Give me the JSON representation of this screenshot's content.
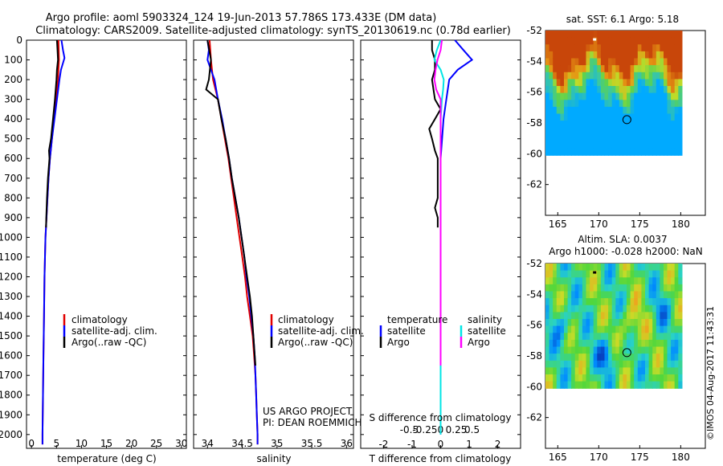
{
  "header": {
    "title_line1": "Argo profile: aoml 5903324_124 19-Jun-2013 57.786S 173.433E (DM data)",
    "title_line2": "Climatology: CARS2009. Satellite-adjusted climatology: synTS_20130619.nc (0.78d earlier)"
  },
  "colors": {
    "climatology": "#e00000",
    "satellite": "#0000ff",
    "argo": "#000000",
    "salinity_satellite": "#00e5e5",
    "salinity_argo": "#ff00ff"
  },
  "chart_data": [
    {
      "type": "line",
      "name": "temperature-profile",
      "xlabel": "temperature (deg C)",
      "ylabel": "",
      "xlim": [
        -1,
        31
      ],
      "ylim": [
        2070,
        0
      ],
      "xticks": [
        "0",
        "5",
        "10",
        "15",
        "20",
        "25",
        "30"
      ],
      "yticks": [
        "0",
        "100",
        "200",
        "300",
        "400",
        "500",
        "600",
        "700",
        "800",
        "900",
        "1000",
        "1100",
        "1200",
        "1300",
        "1400",
        "1500",
        "1600",
        "1700",
        "1800",
        "1900",
        "2000"
      ],
      "legend": [
        "climatology",
        "satellite-adj. clim.",
        "Argo(..raw -QC)"
      ],
      "series": [
        {
          "name": "climatology",
          "color_key": "climatology",
          "depth": [
            0,
            100,
            200,
            300,
            400,
            500,
            600,
            700,
            800,
            900,
            1000,
            1200,
            1400,
            1600,
            1800,
            2000,
            2050
          ],
          "values": [
            5.4,
            5.5,
            5.3,
            4.9,
            4.5,
            4.1,
            3.7,
            3.4,
            3.2,
            3.0,
            2.8,
            2.6,
            2.5,
            2.4,
            2.3,
            2.2,
            2.2
          ]
        },
        {
          "name": "satellite-adj. clim.",
          "color_key": "satellite",
          "depth": [
            0,
            50,
            90,
            150,
            200,
            300,
            400,
            500,
            600,
            700,
            800,
            900,
            1000,
            1200,
            1400,
            1600,
            1800,
            2000,
            2050
          ],
          "values": [
            6.0,
            6.3,
            6.6,
            5.9,
            5.6,
            5.1,
            4.6,
            4.1,
            3.7,
            3.4,
            3.2,
            3.0,
            2.8,
            2.6,
            2.5,
            2.4,
            2.3,
            2.2,
            2.2
          ]
        },
        {
          "name": "Argo(..raw -QC)",
          "color_key": "argo",
          "depth": [
            0,
            50,
            100,
            150,
            200,
            300,
            400,
            500,
            560,
            600,
            700,
            800,
            900,
            950
          ],
          "values": [
            5.1,
            5.2,
            5.3,
            5.1,
            5.0,
            4.7,
            4.3,
            3.9,
            3.5,
            3.6,
            3.3,
            3.1,
            2.95,
            2.9
          ]
        }
      ]
    },
    {
      "type": "line",
      "name": "salinity-profile",
      "xlabel": "salinity",
      "ylabel": "",
      "xlim": [
        33.8,
        36.1
      ],
      "ylim": [
        2070,
        0
      ],
      "xticks": [
        "34",
        "34.5",
        "35",
        "35.5",
        "36"
      ],
      "legend": [
        "climatology",
        "satellite-adj. clim.",
        "Argo(..raw -QC)"
      ],
      "annotation_line1": "US ARGO PROJECT",
      "annotation_line2": "PI: DEAN ROEMMICH",
      "series": [
        {
          "name": "climatology",
          "color_key": "climatology",
          "depth": [
            0,
            50,
            100,
            200,
            300,
            400,
            500,
            600,
            700,
            800,
            900,
            1000,
            1100,
            1200,
            1300,
            1400,
            1500,
            1600,
            1700,
            1800,
            1900,
            2000,
            2050
          ],
          "values": [
            34.03,
            34.04,
            34.05,
            34.08,
            34.15,
            34.2,
            34.25,
            34.3,
            34.34,
            34.38,
            34.42,
            34.46,
            34.5,
            34.54,
            34.57,
            34.61,
            34.65,
            34.67,
            34.69,
            34.7,
            34.71,
            34.72,
            34.72
          ]
        },
        {
          "name": "satellite-adj. clim.",
          "color_key": "satellite",
          "depth": [
            0,
            50,
            100,
            150,
            200,
            300,
            400,
            500,
            600,
            700,
            800,
            900,
            1000,
            1100,
            1200,
            1300,
            1400,
            1500,
            1600,
            1700,
            1800,
            1900,
            2000,
            2050
          ],
          "values": [
            34.0,
            34.02,
            34.0,
            34.05,
            34.1,
            34.15,
            34.21,
            34.26,
            34.31,
            34.35,
            34.4,
            34.45,
            34.49,
            34.53,
            34.56,
            34.6,
            34.63,
            34.66,
            34.68,
            34.69,
            34.7,
            34.71,
            34.72,
            34.72
          ]
        },
        {
          "name": "Argo(..raw -QC)",
          "color_key": "argo",
          "depth": [
            0,
            100,
            200,
            250,
            300,
            400,
            500,
            600,
            700,
            800,
            900,
            1000,
            1100,
            1200,
            1300,
            1400,
            1500,
            1600,
            1650
          ],
          "values": [
            34.0,
            34.05,
            34.02,
            33.98,
            34.15,
            34.2,
            34.26,
            34.31,
            34.35,
            34.4,
            34.45,
            34.49,
            34.53,
            34.57,
            34.61,
            34.64,
            34.66,
            34.68,
            34.69
          ]
        }
      ]
    },
    {
      "type": "line",
      "name": "difference-profile",
      "xlabel": "T difference from climatology",
      "xlabel2": "S difference from climatology",
      "xlim": [
        -2.8,
        2.8
      ],
      "ylim": [
        2070,
        0
      ],
      "xticks_T": [
        "-2",
        "-1",
        "0",
        "1",
        "2"
      ],
      "xticks_S": [
        "-0.5",
        "-0.25",
        "0",
        "0.25",
        "0.5"
      ],
      "legend_temperature_title": "temperature",
      "legend_salinity_title": "salinity",
      "legend_items": [
        "satellite",
        "Argo",
        "satellite",
        "Argo"
      ],
      "series": [
        {
          "name": "temperature satellite",
          "color_key": "satellite",
          "depth": [
            0,
            50,
            100,
            150,
            200,
            300,
            400,
            500,
            600,
            700,
            800,
            900,
            1000,
            1200,
            1500,
            2000
          ],
          "values": [
            0.5,
            0.8,
            1.1,
            0.6,
            0.3,
            0.2,
            0.1,
            0.05,
            0.0,
            0.0,
            0.0,
            0.0,
            0.0,
            0.0,
            0.0,
            0.0
          ]
        },
        {
          "name": "temperature Argo",
          "color_key": "argo",
          "depth": [
            0,
            50,
            100,
            150,
            200,
            300,
            350,
            400,
            450,
            500,
            560,
            600,
            700,
            800,
            850,
            900,
            950
          ],
          "values": [
            -0.3,
            -0.3,
            -0.2,
            -0.2,
            -0.3,
            -0.2,
            0.0,
            -0.2,
            -0.4,
            -0.3,
            -0.2,
            -0.1,
            -0.1,
            -0.1,
            -0.2,
            -0.1,
            -0.1
          ]
        },
        {
          "name": "salinity satellite",
          "color_key": "salinity_satellite",
          "depth": [
            0,
            50,
            100,
            150,
            200,
            250,
            300,
            400,
            500,
            600,
            700,
            800,
            1000,
            1500,
            2000
          ],
          "values": [
            0.0,
            -0.06,
            -0.1,
            0.0,
            0.05,
            0.04,
            0.02,
            0.0,
            0.0,
            0.0,
            0.0,
            0.0,
            0.0,
            0.0,
            0.0
          ]
        },
        {
          "name": "salinity Argo",
          "color_key": "salinity_argo",
          "depth": [
            0,
            50,
            100,
            150,
            200,
            250,
            300,
            400,
            500,
            600,
            700,
            800,
            1000,
            1400,
            1600,
            1650
          ],
          "values": [
            0.02,
            0.0,
            -0.05,
            -0.08,
            -0.1,
            -0.07,
            0.0,
            0.0,
            0.0,
            0.0,
            0.0,
            0.0,
            0.0,
            0.0,
            0.0,
            0.0
          ]
        }
      ]
    },
    {
      "type": "heatmap",
      "name": "sst-map",
      "title": "sat. SST: 6.1 Argo: 5.18",
      "xlim": [
        163.5,
        183
      ],
      "ylim": [
        -52,
        -64
      ],
      "xticks": [
        "165",
        "170",
        "175",
        "180"
      ],
      "yticks": [
        "-52",
        "-54",
        "-56",
        "-58",
        "-60",
        "-62"
      ],
      "marker": {
        "lon": 173.433,
        "lat": -57.786
      }
    },
    {
      "type": "heatmap",
      "name": "sla-map",
      "title": "Altim. SLA: 0.0037",
      "subtitle": "Argo h1000: -0.028 h2000: NaN",
      "xlim": [
        163.5,
        183
      ],
      "ylim": [
        -52,
        -64
      ],
      "xticks": [
        "165",
        "170",
        "175",
        "180"
      ],
      "yticks": [
        "-52",
        "-54",
        "-56",
        "-58",
        "-60",
        "-62"
      ],
      "marker": {
        "lon": 173.433,
        "lat": -57.786
      }
    }
  ],
  "footer": {
    "credit": "©IMOS 04-Aug-2017 11:43:31"
  }
}
